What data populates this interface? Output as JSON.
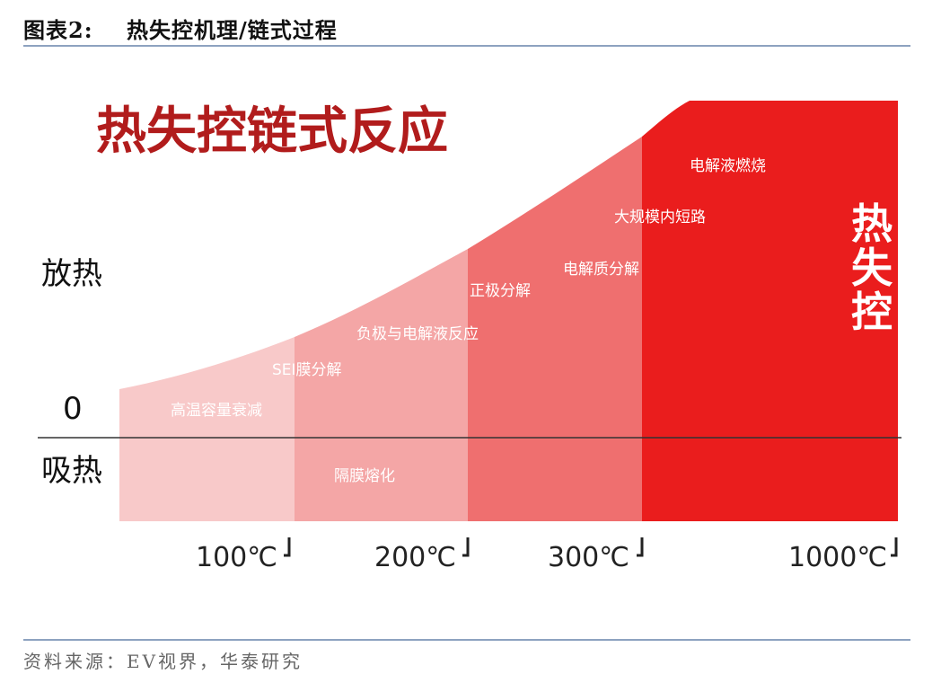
{
  "figure": {
    "title": "图表2:    热失控机理/链式过程",
    "source": "资料来源：EV视界，华泰研究"
  },
  "diagram": {
    "heading": "热失控链式反应",
    "axis_labels": {
      "exothermic": "放热",
      "zero": "0",
      "endothermic": "吸热"
    },
    "temperature_marks": [
      "100℃",
      "200℃",
      "300℃",
      "1000℃"
    ],
    "stage_colors": [
      "#f8c9c9",
      "#f4a6a6",
      "#ef6f6f",
      "#ea1d1d"
    ],
    "events": [
      "高温容量衰减",
      "SEI膜分解",
      "隔膜熔化",
      "负极与电解液反应",
      "正极分解",
      "电解质分解",
      "大规模内短路",
      "电解液燃烧"
    ],
    "final_state": [
      "热",
      "失",
      "控"
    ]
  }
}
